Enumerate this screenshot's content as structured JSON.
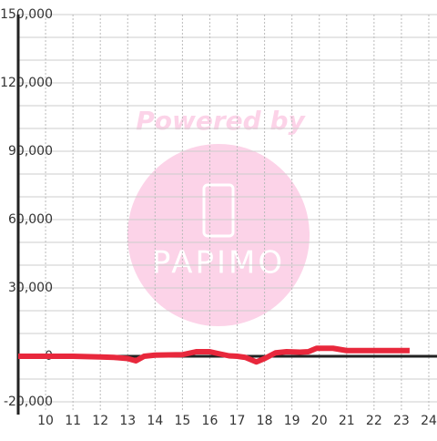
{
  "chart_data": {
    "type": "line",
    "x": [
      9,
      10,
      11,
      12,
      12.5,
      13,
      13.3,
      13.6,
      14,
      15,
      15.5,
      16,
      16.3,
      16.7,
      17,
      17.3,
      17.7,
      18,
      18.4,
      18.8,
      19.3,
      19.6,
      19.9,
      20.5,
      21,
      22,
      23,
      23.3
    ],
    "series": [
      {
        "color": "#e8283c",
        "values": [
          0,
          0,
          0,
          -300,
          -500,
          -1000,
          -2000,
          0,
          500,
          700,
          2000,
          2000,
          1200,
          200,
          0,
          -500,
          -2500,
          -1000,
          1500,
          2000,
          1800,
          2000,
          3500,
          3500,
          2500,
          2500,
          2500,
          2500
        ]
      }
    ],
    "xlim": [
      9,
      24.3
    ],
    "xticks": [
      10,
      11,
      12,
      13,
      14,
      15,
      16,
      17,
      18,
      19,
      20,
      21,
      22,
      23,
      24
    ],
    "ylim": [
      -20000,
      150000
    ],
    "yticks": [
      {
        "value": -20000,
        "label": "-20,000"
      },
      0,
      {
        "value": 30000,
        "label": "30,000"
      },
      {
        "value": 60000,
        "label": "60,000"
      },
      {
        "value": 90000,
        "label": "90,000"
      },
      {
        "value": 120000,
        "label": "120,000"
      },
      {
        "value": 150000,
        "label": "150,000"
      }
    ],
    "y_minor_ticks": [
      -10000,
      10000,
      20000,
      40000,
      50000,
      70000,
      80000,
      100000,
      110000,
      130000,
      140000
    ],
    "grid": true
  },
  "watermark": {
    "text": "Powered by",
    "logo": "PAPIMO"
  }
}
